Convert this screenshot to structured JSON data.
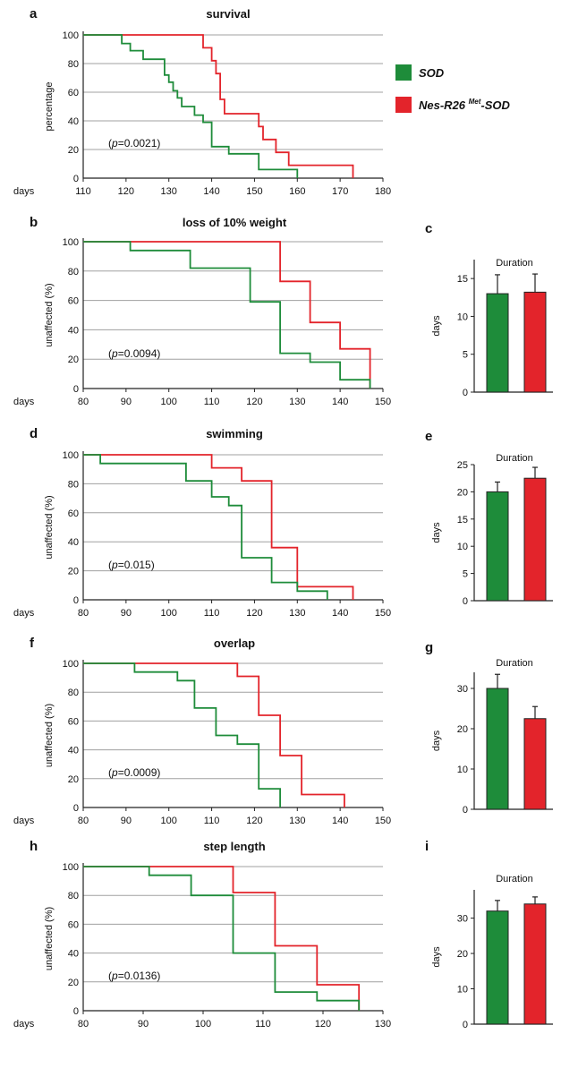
{
  "colors": {
    "sod": "#1e8c3a",
    "nes": "#e3242b"
  },
  "legend": [
    {
      "key": "sod",
      "label": "SOD",
      "sup": "",
      "tail": ""
    },
    {
      "key": "nes",
      "label": "Nes-R26 ",
      "sup": "Met",
      "tail": "-SOD"
    }
  ],
  "chart_data": [
    {
      "id": "a",
      "letter": "a",
      "type": "line",
      "step": true,
      "title": "survival",
      "ylabel": "percentage",
      "xunit": "days",
      "xlim": [
        110,
        180
      ],
      "xticks": [
        110,
        120,
        130,
        140,
        150,
        160,
        170,
        180
      ],
      "ylim": [
        0,
        100
      ],
      "yticks": [
        0,
        20,
        40,
        60,
        80,
        100
      ],
      "pvalue": {
        "before": "(",
        "p": "p",
        "after": "=0.0021)"
      },
      "series": [
        {
          "key": "sod",
          "x": [
            110,
            119,
            121,
            124,
            129,
            130,
            131,
            132,
            133,
            136,
            138,
            140,
            144,
            151,
            160
          ],
          "y": [
            100,
            94,
            89,
            83,
            72,
            67,
            61,
            56,
            50,
            44,
            39,
            22,
            17,
            6,
            0
          ]
        },
        {
          "key": "nes",
          "x": [
            110,
            138,
            140,
            141,
            142,
            143,
            151,
            152,
            155,
            158,
            160,
            173
          ],
          "y": [
            100,
            91,
            82,
            73,
            55,
            45,
            36,
            27,
            18,
            9,
            9,
            0
          ]
        }
      ]
    },
    {
      "id": "b",
      "letter": "b",
      "type": "line",
      "step": true,
      "title": "loss of 10% weight",
      "ylabel": "unaffected (%)",
      "xunit": "days",
      "xlim": [
        80,
        150
      ],
      "xticks": [
        80,
        90,
        100,
        110,
        120,
        130,
        140,
        150
      ],
      "ylim": [
        0,
        100
      ],
      "yticks": [
        0,
        20,
        40,
        60,
        80,
        100
      ],
      "pvalue": {
        "before": "(",
        "p": "p",
        "after": "=0.0094)"
      },
      "series": [
        {
          "key": "sod",
          "x": [
            80,
            91,
            105,
            119,
            126,
            133,
            140,
            147
          ],
          "y": [
            100,
            94,
            82,
            59,
            24,
            18,
            6,
            0
          ]
        },
        {
          "key": "nes",
          "x": [
            80,
            126,
            133,
            140,
            147
          ],
          "y": [
            100,
            73,
            45,
            27,
            0
          ]
        }
      ]
    },
    {
      "id": "c",
      "letter": "c",
      "type": "bar",
      "subtitle": "Duration",
      "ylabel": "days",
      "ylim": [
        0,
        17.5
      ],
      "yticks": [
        0,
        5,
        10,
        15
      ],
      "bars": [
        {
          "key": "sod",
          "value": 13,
          "error": 2.5
        },
        {
          "key": "nes",
          "value": 13.2,
          "error": 2.4
        }
      ]
    },
    {
      "id": "d",
      "letter": "d",
      "type": "line",
      "step": true,
      "title": "swimming",
      "ylabel": "unaffected (%)",
      "xunit": "days",
      "xlim": [
        80,
        150
      ],
      "xticks": [
        80,
        90,
        100,
        110,
        120,
        130,
        140,
        150
      ],
      "ylim": [
        0,
        100
      ],
      "yticks": [
        0,
        20,
        40,
        60,
        80,
        100
      ],
      "pvalue": {
        "before": "(",
        "p": "p",
        "after": "=0.015)"
      },
      "series": [
        {
          "key": "sod",
          "x": [
            80,
            84,
            104,
            110,
            114,
            117,
            124,
            130,
            137
          ],
          "y": [
            100,
            94,
            82,
            71,
            65,
            29,
            12,
            6,
            0
          ]
        },
        {
          "key": "nes",
          "x": [
            80,
            110,
            117,
            124,
            130,
            143
          ],
          "y": [
            100,
            91,
            82,
            36,
            9,
            0
          ]
        }
      ]
    },
    {
      "id": "e",
      "letter": "e",
      "type": "bar",
      "subtitle": "Duration",
      "ylabel": "days",
      "ylim": [
        0,
        25
      ],
      "yticks": [
        0,
        5,
        10,
        15,
        20,
        25
      ],
      "bars": [
        {
          "key": "sod",
          "value": 20,
          "error": 1.8
        },
        {
          "key": "nes",
          "value": 22.5,
          "error": 2
        }
      ]
    },
    {
      "id": "f",
      "letter": "f",
      "type": "line",
      "step": true,
      "title": "overlap",
      "ylabel": "unaffected (%)",
      "xunit": "days",
      "xlim": [
        80,
        150
      ],
      "xticks": [
        80,
        90,
        100,
        110,
        120,
        130,
        140,
        150
      ],
      "ylim": [
        0,
        100
      ],
      "yticks": [
        0,
        20,
        40,
        60,
        80,
        100
      ],
      "pvalue": {
        "before": "(",
        "p": "p",
        "after": "=0.0009)"
      },
      "series": [
        {
          "key": "sod",
          "x": [
            80,
            92,
            102,
            106,
            111,
            116,
            121,
            126
          ],
          "y": [
            100,
            94,
            88,
            69,
            50,
            44,
            13,
            0
          ]
        },
        {
          "key": "nes",
          "x": [
            80,
            116,
            121,
            126,
            131,
            141
          ],
          "y": [
            100,
            91,
            64,
            36,
            9,
            0
          ]
        }
      ]
    },
    {
      "id": "g",
      "letter": "g",
      "type": "bar",
      "subtitle": "Duration",
      "ylabel": "days",
      "ylim": [
        0,
        34
      ],
      "yticks": [
        0,
        10,
        20,
        30
      ],
      "bars": [
        {
          "key": "sod",
          "value": 30,
          "error": 3.5
        },
        {
          "key": "nes",
          "value": 22.5,
          "error": 3
        }
      ]
    },
    {
      "id": "h",
      "letter": "h",
      "type": "line",
      "step": true,
      "title": "step length",
      "ylabel": "unaffected (%)",
      "xunit": "days",
      "xlim": [
        80,
        130
      ],
      "xticks": [
        80,
        90,
        100,
        110,
        120,
        130
      ],
      "ylim": [
        0,
        100
      ],
      "yticks": [
        0,
        20,
        40,
        60,
        80,
        100
      ],
      "pvalue": {
        "before": "(",
        "p": "p",
        "after": "=0.0136)"
      },
      "series": [
        {
          "key": "sod",
          "x": [
            80,
            91,
            98,
            105,
            112,
            119,
            126
          ],
          "y": [
            100,
            94,
            80,
            40,
            13,
            7,
            0
          ]
        },
        {
          "key": "nes",
          "x": [
            80,
            105,
            112,
            119,
            126
          ],
          "y": [
            100,
            82,
            45,
            18,
            0
          ]
        }
      ]
    },
    {
      "id": "i",
      "letter": "i",
      "type": "bar",
      "subtitle": "Duration",
      "ylabel": "days",
      "ylim": [
        0,
        38
      ],
      "yticks": [
        0,
        10,
        20,
        30
      ],
      "bars": [
        {
          "key": "sod",
          "value": 32,
          "error": 3
        },
        {
          "key": "nes",
          "value": 34,
          "error": 2
        }
      ]
    }
  ]
}
